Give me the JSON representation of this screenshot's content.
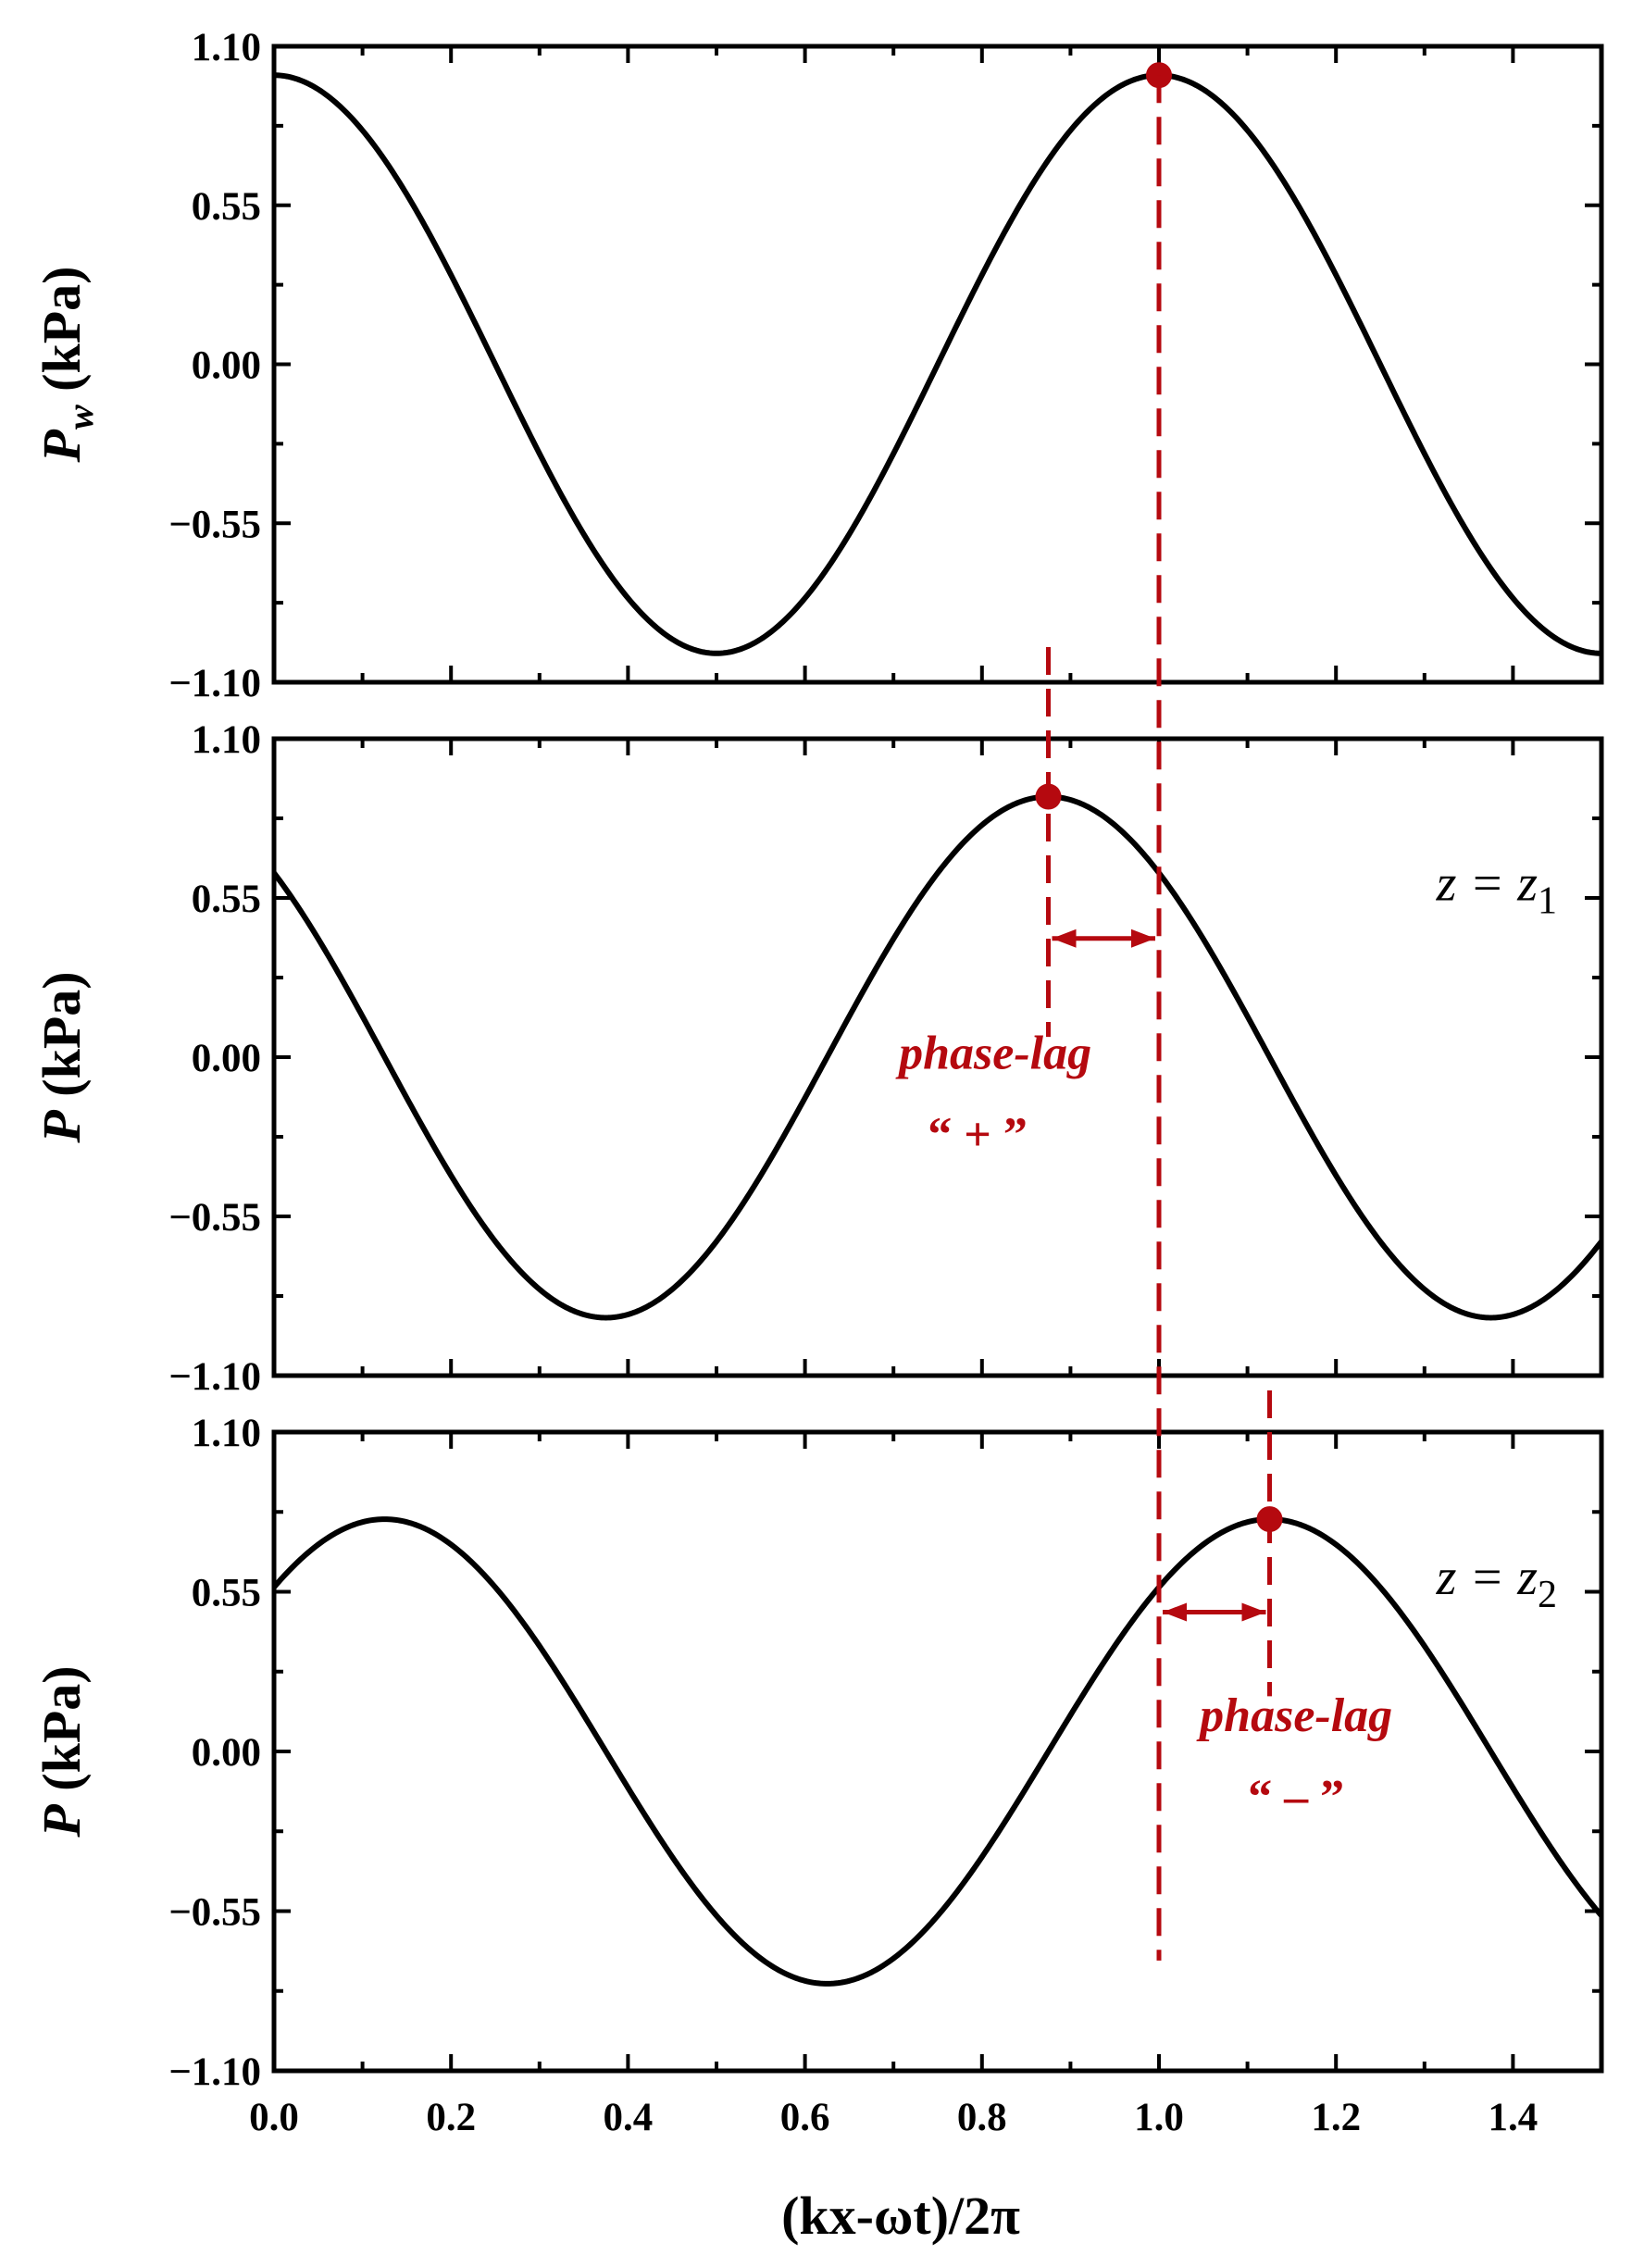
{
  "chart_data": [
    {
      "type": "line",
      "panel": "top",
      "ylabel": "P_w (kPa)",
      "ylabel_parts": {
        "main": "P",
        "sub": "w",
        "rest": " (kPa)"
      },
      "xlim": [
        0,
        1.5
      ],
      "ylim": [
        -1.1,
        1.1
      ],
      "yticks": [
        1.1,
        0.55,
        0.0,
        -0.55,
        -1.1
      ],
      "ytick_labels": [
        "1.10",
        "0.55",
        "0.00",
        "−0.55",
        "−1.10"
      ],
      "series": [
        {
          "function": "cosine",
          "amplitude": 1.0,
          "period": 1.0,
          "peak_x": 1.0,
          "x": [
            0.0,
            0.25,
            0.5,
            0.75,
            1.0,
            1.25,
            1.5
          ],
          "y": [
            1.0,
            0.0,
            -1.0,
            0.0,
            1.0,
            0.0,
            -1.0
          ]
        }
      ],
      "markers": [
        {
          "x": 1.0,
          "y": 1.0
        }
      ],
      "annotation": ""
    },
    {
      "type": "line",
      "panel": "middle",
      "ylabel": "P (kPa)",
      "ylabel_parts": {
        "main": "P",
        "sub": "",
        "rest": " (kPa)"
      },
      "xlim": [
        0,
        1.5
      ],
      "ylim": [
        -1.1,
        1.1
      ],
      "yticks": [
        1.1,
        0.55,
        0.0,
        -0.55,
        -1.1
      ],
      "ytick_labels": [
        "1.10",
        "0.55",
        "0.00",
        "−0.55",
        "−1.10"
      ],
      "series": [
        {
          "function": "cosine",
          "amplitude": 0.9,
          "period": 1.0,
          "peak_x": 0.875,
          "x": [
            0.0,
            0.125,
            0.375,
            0.625,
            0.875,
            1.125,
            1.375,
            1.5
          ],
          "y": [
            0.64,
            0.0,
            -0.9,
            0.0,
            0.9,
            0.0,
            -0.9,
            -0.64
          ]
        }
      ],
      "markers": [
        {
          "x": 0.875,
          "y": 0.9
        }
      ],
      "annotation": "z = z1",
      "annotation_parts": {
        "lhs": "z",
        "eq": " = ",
        "rhs": "z",
        "sub": "1"
      },
      "phase_lag": {
        "from": 0.875,
        "to": 1.0,
        "label": "phase-lag",
        "sign": "“ + ”"
      }
    },
    {
      "type": "line",
      "panel": "bottom",
      "ylabel": "P (kPa)",
      "ylabel_parts": {
        "main": "P",
        "sub": "",
        "rest": " (kPa)"
      },
      "xlim": [
        0,
        1.5
      ],
      "ylim": [
        -1.1,
        1.1
      ],
      "yticks": [
        1.1,
        0.55,
        0.0,
        -0.55,
        -1.1
      ],
      "ytick_labels": [
        "1.10",
        "0.55",
        "0.00",
        "−0.55",
        "−1.10"
      ],
      "xticks": [
        0.0,
        0.2,
        0.4,
        0.6,
        0.8,
        1.0,
        1.2,
        1.4
      ],
      "xtick_labels": [
        "0.0",
        "0.2",
        "0.4",
        "0.6",
        "0.8",
        "1.0",
        "1.2",
        "1.4"
      ],
      "xlabel": "(kx-ωt)/2π",
      "series": [
        {
          "function": "cosine",
          "amplitude": 0.8,
          "period": 1.0,
          "peak_x": 1.125,
          "x": [
            0.0,
            0.125,
            0.375,
            0.625,
            0.875,
            1.125,
            1.375,
            1.5
          ],
          "y": [
            0.57,
            0.8,
            0.0,
            -0.8,
            0.0,
            0.8,
            0.0,
            -0.57
          ]
        }
      ],
      "markers": [
        {
          "x": 1.125,
          "y": 0.8
        }
      ],
      "annotation": "z = z2",
      "annotation_parts": {
        "lhs": "z",
        "eq": " = ",
        "rhs": "z",
        "sub": "2"
      },
      "phase_lag": {
        "from": 1.0,
        "to": 1.125,
        "label": "phase-lag",
        "sign": "“ – ”"
      }
    }
  ],
  "colors": {
    "curve": "#000000",
    "accent": "#b5090f"
  }
}
